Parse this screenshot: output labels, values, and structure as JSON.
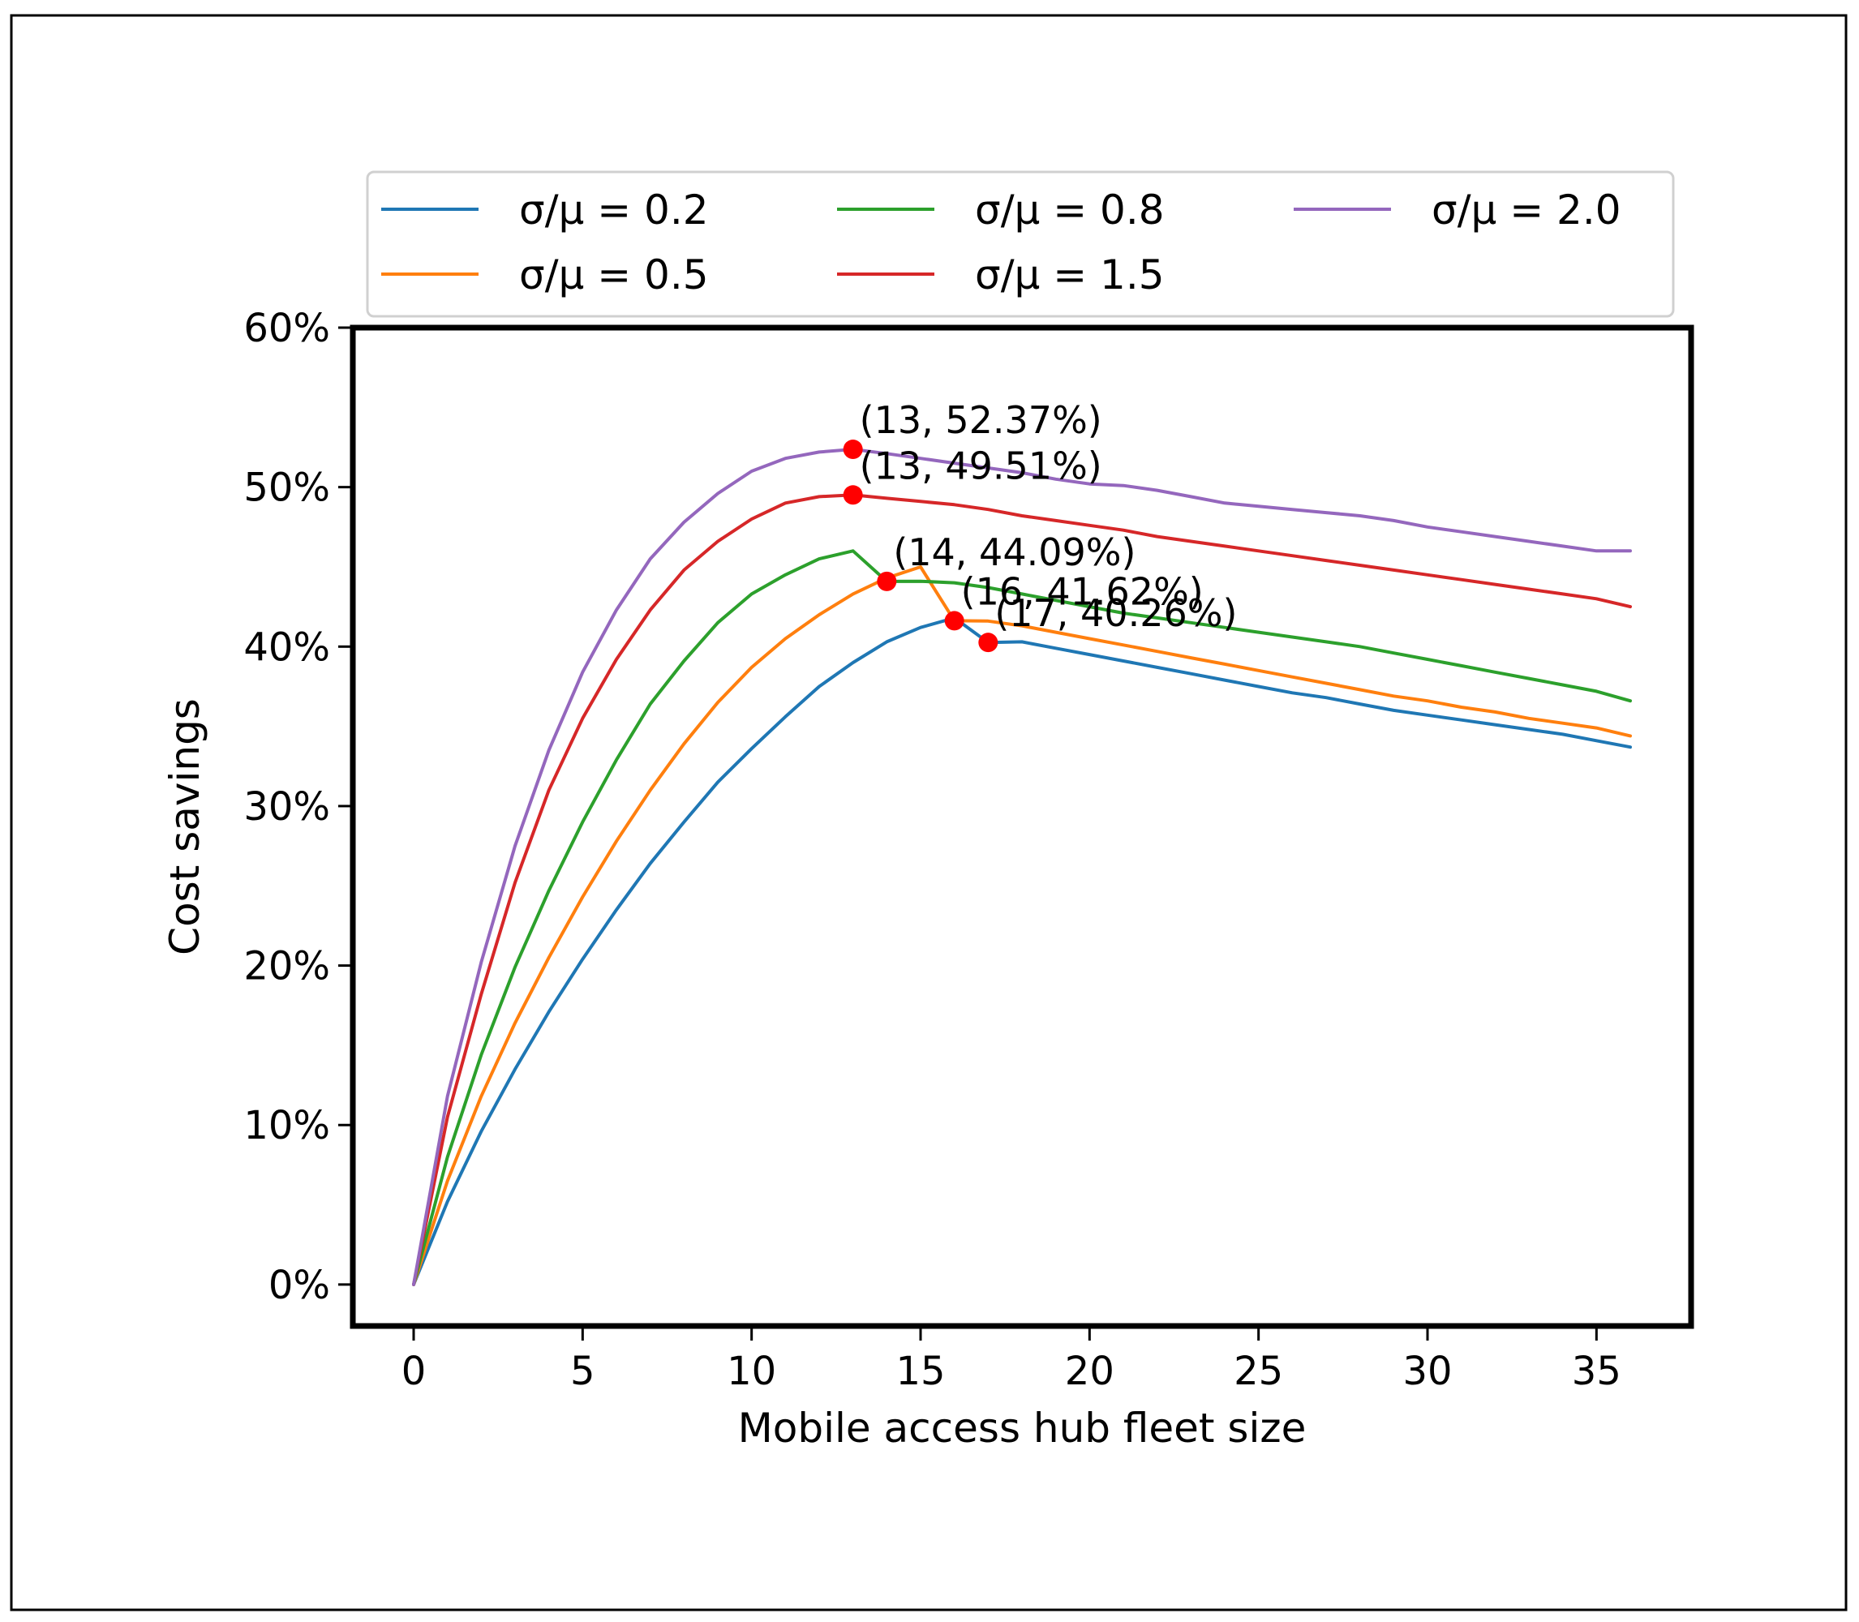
{
  "chart_data": {
    "type": "line",
    "title": "",
    "xlabel": "Mobile access hub fleet size",
    "ylabel": "Cost savings",
    "xlim": [
      -1.8,
      37.8
    ],
    "ylim": [
      -2.6,
      60
    ],
    "x_ticks": [
      0,
      5,
      10,
      15,
      20,
      25,
      30,
      35
    ],
    "y_ticks": [
      0,
      10,
      20,
      30,
      40,
      50,
      60
    ],
    "y_tick_suffix": "%",
    "grid": false,
    "legend": {
      "placement": "top",
      "columns": 3
    },
    "x": [
      0,
      1,
      2,
      3,
      4,
      5,
      6,
      7,
      8,
      9,
      10,
      11,
      12,
      13,
      14,
      15,
      16,
      17,
      18,
      19,
      20,
      21,
      22,
      23,
      24,
      25,
      26,
      27,
      28,
      29,
      30,
      31,
      32,
      33,
      34,
      35,
      36
    ],
    "series": [
      {
        "name": "σ/μ = 0.2",
        "color": "#1f77b4",
        "values": [
          0.0,
          5.2,
          9.6,
          13.5,
          17.1,
          20.4,
          23.5,
          26.4,
          29.0,
          31.5,
          33.6,
          35.6,
          37.5,
          39.0,
          40.3,
          41.2,
          41.8,
          40.26,
          40.3,
          39.9,
          39.5,
          39.1,
          38.7,
          38.3,
          37.9,
          37.5,
          37.1,
          36.8,
          36.4,
          36.0,
          35.7,
          35.4,
          35.1,
          34.8,
          34.5,
          34.1,
          33.7
        ]
      },
      {
        "name": "σ/μ = 0.5",
        "color": "#ff7f0e",
        "values": [
          0.0,
          6.5,
          11.8,
          16.4,
          20.5,
          24.3,
          27.8,
          31.0,
          33.9,
          36.5,
          38.7,
          40.5,
          42.0,
          43.3,
          44.3,
          45.0,
          41.62,
          41.6,
          41.3,
          40.9,
          40.5,
          40.1,
          39.7,
          39.3,
          38.9,
          38.5,
          38.1,
          37.7,
          37.3,
          36.9,
          36.6,
          36.2,
          35.9,
          35.5,
          35.2,
          34.9,
          34.4
        ]
      },
      {
        "name": "σ/μ = 0.8",
        "color": "#2ca02c",
        "values": [
          0.0,
          8.0,
          14.4,
          19.9,
          24.7,
          29.0,
          32.9,
          36.4,
          39.1,
          41.5,
          43.3,
          44.5,
          45.5,
          46.0,
          44.09,
          44.1,
          44.0,
          43.7,
          43.3,
          42.9,
          42.5,
          42.1,
          41.8,
          41.5,
          41.2,
          40.9,
          40.6,
          40.3,
          40.0,
          39.6,
          39.2,
          38.8,
          38.4,
          38.0,
          37.6,
          37.2,
          36.6
        ]
      },
      {
        "name": "σ/μ = 1.5",
        "color": "#d62728",
        "values": [
          0.0,
          10.5,
          18.2,
          25.2,
          31.0,
          35.5,
          39.2,
          42.3,
          44.8,
          46.6,
          48.0,
          49.0,
          49.4,
          49.51,
          49.3,
          49.1,
          48.9,
          48.6,
          48.2,
          47.9,
          47.6,
          47.3,
          46.9,
          46.6,
          46.3,
          46.0,
          45.7,
          45.4,
          45.1,
          44.8,
          44.5,
          44.2,
          43.9,
          43.6,
          43.3,
          43.0,
          42.5
        ]
      },
      {
        "name": "σ/μ = 2.0",
        "color": "#9467bd",
        "values": [
          0.0,
          11.8,
          20.2,
          27.5,
          33.5,
          38.4,
          42.3,
          45.5,
          47.8,
          49.6,
          51.0,
          51.8,
          52.2,
          52.37,
          52.1,
          51.8,
          51.5,
          51.2,
          50.9,
          50.5,
          50.2,
          50.1,
          49.8,
          49.4,
          49.0,
          48.8,
          48.6,
          48.4,
          48.2,
          47.9,
          47.5,
          47.2,
          46.9,
          46.6,
          46.3,
          46.0,
          46.0
        ]
      }
    ],
    "annotations": [
      {
        "x": 13,
        "y": 52.37,
        "text": "(13, 52.37%)"
      },
      {
        "x": 13,
        "y": 49.51,
        "text": "(13, 49.51%)"
      },
      {
        "x": 14,
        "y": 44.09,
        "text": "(14, 44.09%)"
      },
      {
        "x": 16,
        "y": 41.62,
        "text": "(16, 41.62%)"
      },
      {
        "x": 17,
        "y": 40.26,
        "text": "(17, 40.26%)"
      }
    ],
    "marker_color": "#ff0000"
  }
}
